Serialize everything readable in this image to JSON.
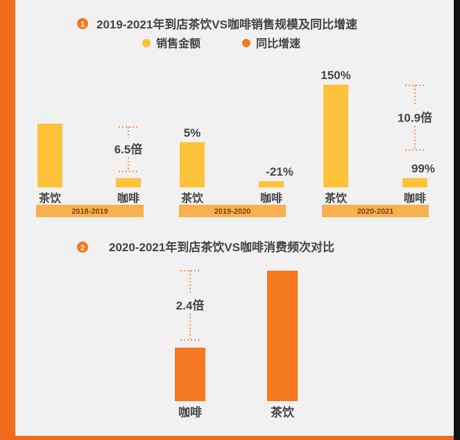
{
  "colors": {
    "sales": "#fdc13a",
    "growth": "#f47920",
    "period_bar": "#f8b050",
    "period_text": "#7a4510",
    "text": "#444444",
    "badge": "#f47920"
  },
  "section1": {
    "number": "1",
    "title": "2019-2021年到店茶饮VS咖啡销售规模及同比增速",
    "legend": {
      "sales": "销售金额",
      "growth": "同比增速"
    }
  },
  "section2": {
    "number": "2",
    "title": "2020-2021年到店茶饮VS咖啡消费频次对比"
  },
  "chart_data": [
    {
      "type": "bar",
      "title": "2019-2021年到店茶饮VS咖啡销售规模及同比增速",
      "legend": [
        "销售金额",
        "同比增速"
      ],
      "periods": [
        {
          "label": "2018-2019",
          "bars": [
            {
              "category": "茶饮",
              "height_ratio": 0.62,
              "label": ""
            },
            {
              "category": "咖啡",
              "height_ratio": 0.09,
              "label": ""
            }
          ],
          "multiple": "6.5倍"
        },
        {
          "label": "2019-2020",
          "bars": [
            {
              "category": "茶饮",
              "height_ratio": 0.44,
              "label": "5%"
            },
            {
              "category": "咖啡",
              "height_ratio": 0.06,
              "label": "-21%"
            }
          ],
          "multiple": ""
        },
        {
          "label": "2020-2021",
          "bars": [
            {
              "category": "茶饮",
              "height_ratio": 1.0,
              "label": "150%"
            },
            {
              "category": "咖啡",
              "height_ratio": 0.09,
              "label": "99%"
            }
          ],
          "multiple": "10.9倍"
        }
      ]
    },
    {
      "type": "bar",
      "title": "2020-2021年到店茶饮VS咖啡消费频次对比",
      "categories": [
        "咖啡",
        "茶饮"
      ],
      "height_ratios": [
        0.41,
        1.0
      ],
      "multiple": "2.4倍"
    }
  ]
}
